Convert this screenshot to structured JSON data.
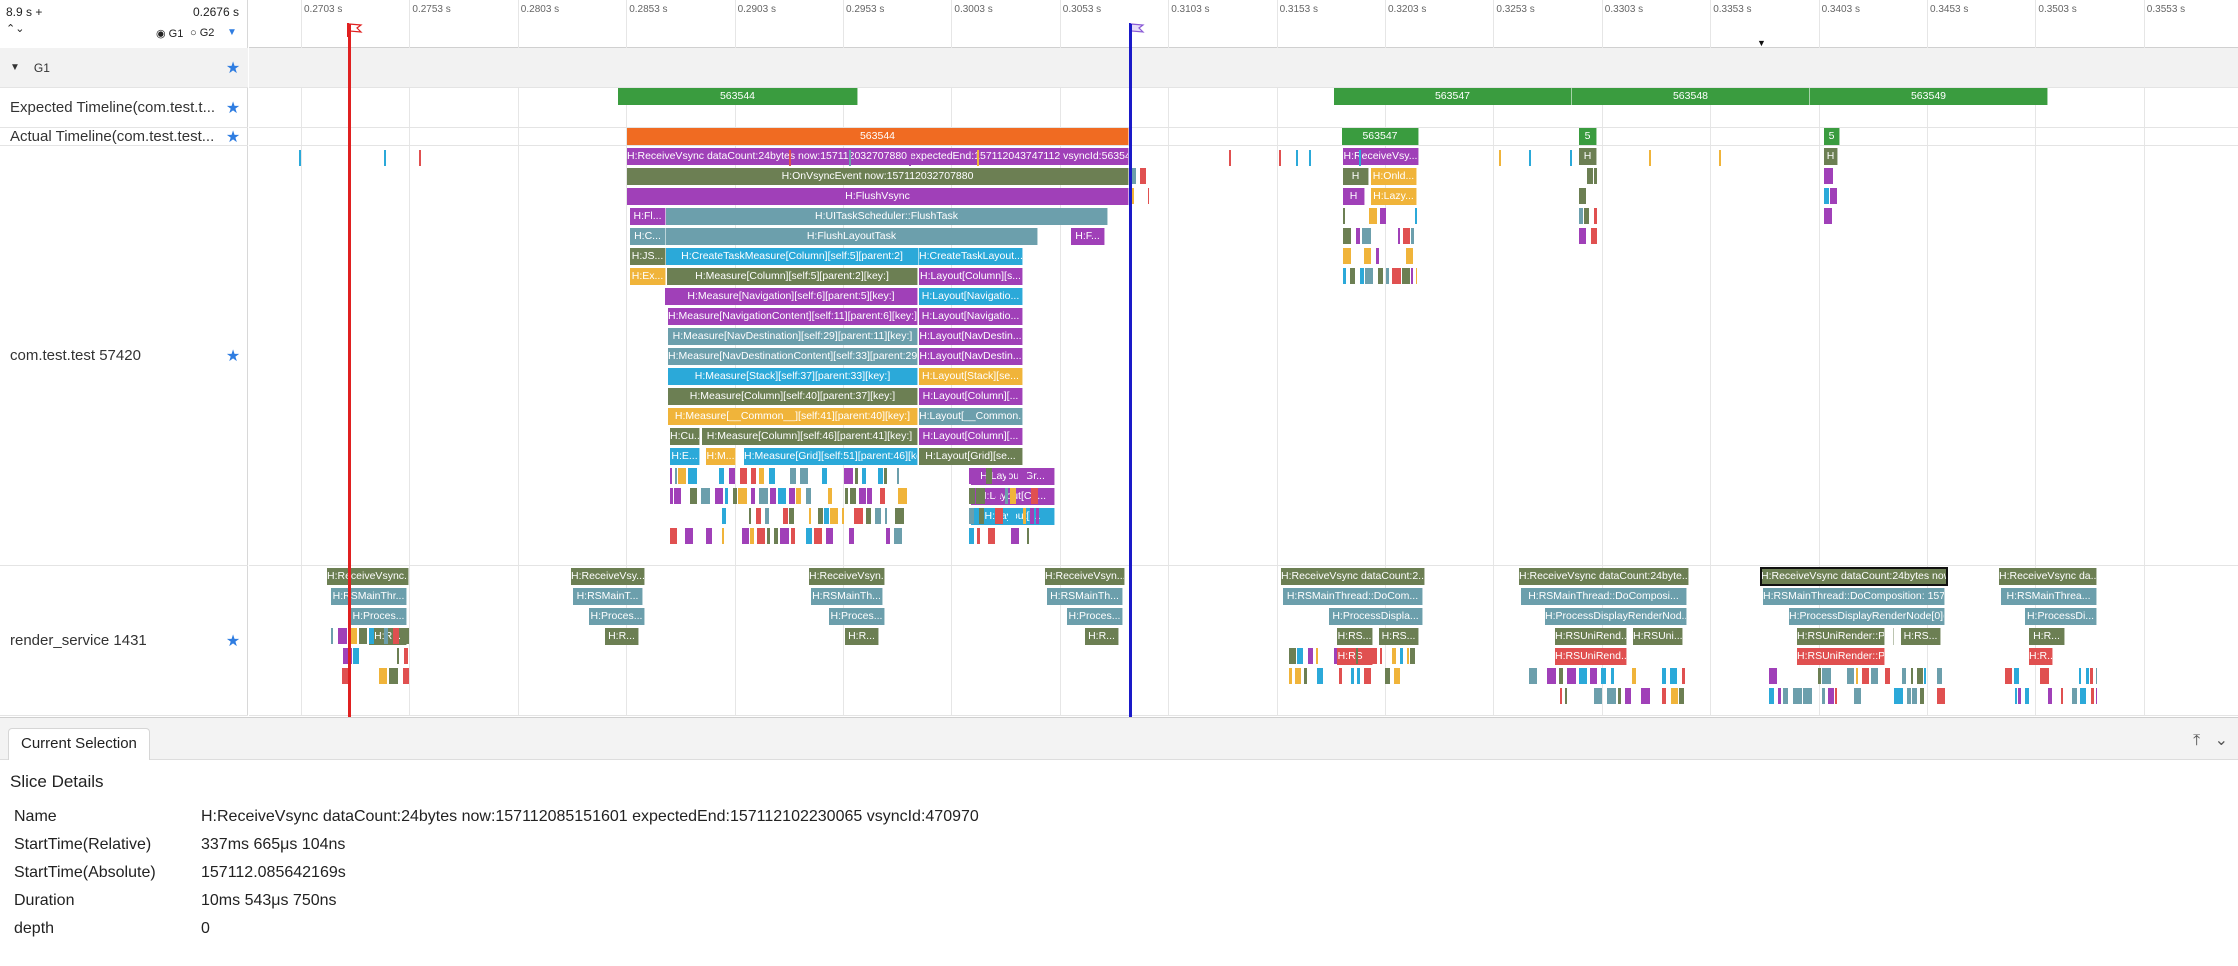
{
  "header": {
    "zoom_left": "8.9 s +",
    "zoom_right": "0.2676 s",
    "g1_label": "G1",
    "g2_label": "G2"
  },
  "ticks": [
    "0.2703 s",
    "0.2753 s",
    "0.2803 s",
    "0.2853 s",
    "0.2903 s",
    "0.2953 s",
    "0.3003 s",
    "0.3053 s",
    "0.3103 s",
    "0.3153 s",
    "0.3203 s",
    "0.3253 s",
    "0.3303 s",
    "0.3353 s",
    "0.3403 s",
    "0.3453 s",
    "0.3503 s",
    "0.3553 s"
  ],
  "rows": {
    "group": "G1",
    "expected": "Expected Timeline(com.test.t...",
    "actual": "Actual Timeline(com.test.test...",
    "app": "com.test.test 57420",
    "render": "render_service 1431"
  },
  "expected_slices": [
    "563544",
    "563547",
    "563548",
    "563549"
  ],
  "actual_slices": [
    "563544",
    "563547",
    "5",
    "5"
  ],
  "app_slices": {
    "receive_vsync": "H:ReceiveVsync dataCount:24bytes now:157112032707880 expectedEnd:157112043747112 vsyncId:563544...",
    "on_vsync_event": "H:OnVsyncEvent now:157112032707880",
    "flush_vsync": "H:FlushVsync",
    "ui_flush_task": "H:UITaskScheduler::FlushTask",
    "flush_layout": "H:FlushLayoutTask",
    "create_measure": "H:CreateTaskMeasure[Column][self:5][parent:2]",
    "create_layout": "H:CreateTaskLayout...",
    "m_column5": "H:Measure[Column][self:5][parent:2][key:]",
    "l_column": "H:Layout[Column][s...",
    "m_nav6": "H:Measure[Navigation][self:6][parent:5][key:]",
    "l_nav": "H:Layout[Navigatio...",
    "m_navcontent": "H:Measure[NavigationContent][self:11][parent:6][key:]",
    "l_navcontent": "H:Layout[Navigatio...",
    "m_navdest": "H:Measure[NavDestination][self:29][parent:11][key:]",
    "l_navdest": "H:Layout[NavDestin...",
    "m_navdestcontent": "H:Measure[NavDestinationContent][self:33][parent:29][...",
    "l_navdestcontent": "H:Layout[NavDestin...",
    "m_stack": "H:Measure[Stack][self:37][parent:33][key:]",
    "l_stack": "H:Layout[Stack][se...",
    "m_column40": "H:Measure[Column][self:40][parent:37][key:]",
    "l_column40": "H:Layout[Column][...",
    "m_common": "H:Measure[__Common__][self:41][parent:40][key:]",
    "l_common": "H:Layout[__Common...",
    "m_column46": "H:Measure[Column][self:46][parent:41][key:]",
    "l_column46": "H:Layout[Column][...",
    "m_grid": "H:Measure[Grid][self:51][parent:46][key:]",
    "l_grid": "H:Layout[Grid][se...",
    "l_gr": "H:Layout[Gr...",
    "l_co": "H:Layout[Co...",
    "l_l": "H:Layout[l...",
    "small_fl": "H:Fl...",
    "small_c": "H:C...",
    "small_js": "H:JS...",
    "small_ex": "H:Ex...",
    "small_cu": "H:Cu...",
    "small_e": "H:E...",
    "small_m": "H:M...",
    "small_f": "H:F...",
    "h": "H",
    "rv2": "H:ReceiveVsy...",
    "onld": "H:Onld...",
    "lazy": "H:Lazy..."
  },
  "render_slices": {
    "rv_a": "H:ReceiveVsync...",
    "rv_b": "H:ReceiveVsy...",
    "rv_c": "H:ReceiveVsyn...",
    "rv_d": "H:ReceiveVsync dataCount:2...",
    "rv_e": "H:ReceiveVsync dataCount:24byte...",
    "rv_f": "H:ReceiveVsync dataCount:24bytes now:15711...",
    "rv_g": "H:ReceiveVsync da...",
    "rsm_a": "H:RSMainThr...",
    "rsm_b": "H:RSMainT...",
    "rsm_c": "H:RSMainTh...",
    "rsm_d": "H:RSMainThread::DoCom...",
    "rsm_e": "H:RSMainThread::DoComposi...",
    "rsm_f": "H:RSMainThread::DoComposition: 1571...",
    "rsm_g": "H:RSMainThrea...",
    "proc_a": "H:Proces...",
    "proc_d": "H:ProcessDispla...",
    "proc_e": "H:ProcessDisplayRenderNod...",
    "proc_f": "H:ProcessDisplayRenderNode[0](0, 0,...",
    "proc_g": "H:ProcessDi...",
    "hr": "H:R...",
    "rs": "H:RS...",
    "rsuni": "H:RSUniRend...",
    "rsuni2": "H:RSUni...",
    "rsuni3": "H:RSUniRender::P...",
    "rs2": "H:RS...",
    "crea": "H:Crea..."
  },
  "details": {
    "tab": "Current Selection",
    "title": "Slice Details",
    "fields": [
      {
        "k": "Name",
        "v": "H:ReceiveVsync dataCount:24bytes now:157112085151601 expectedEnd:157112102230065 vsyncId:470970"
      },
      {
        "k": "StartTime(Relative)",
        "v": "337ms 665μs 104ns"
      },
      {
        "k": "StartTime(Absolute)",
        "v": "157112.085642169s"
      },
      {
        "k": "Duration",
        "v": "10ms 543μs 750ns"
      },
      {
        "k": "depth",
        "v": "0"
      }
    ]
  },
  "colors": {
    "green": "#3a9c3f",
    "orange": "#f06b22",
    "olive": "#6c7f53",
    "purple": "#a040b8",
    "teal": "#6c9fac",
    "cyan": "#2ba9d9",
    "gold": "#f0b43a",
    "red": "#e05050",
    "marker_red": "#e02020",
    "marker_blue": "#1a1ac8",
    "star": "#2f7de1"
  }
}
